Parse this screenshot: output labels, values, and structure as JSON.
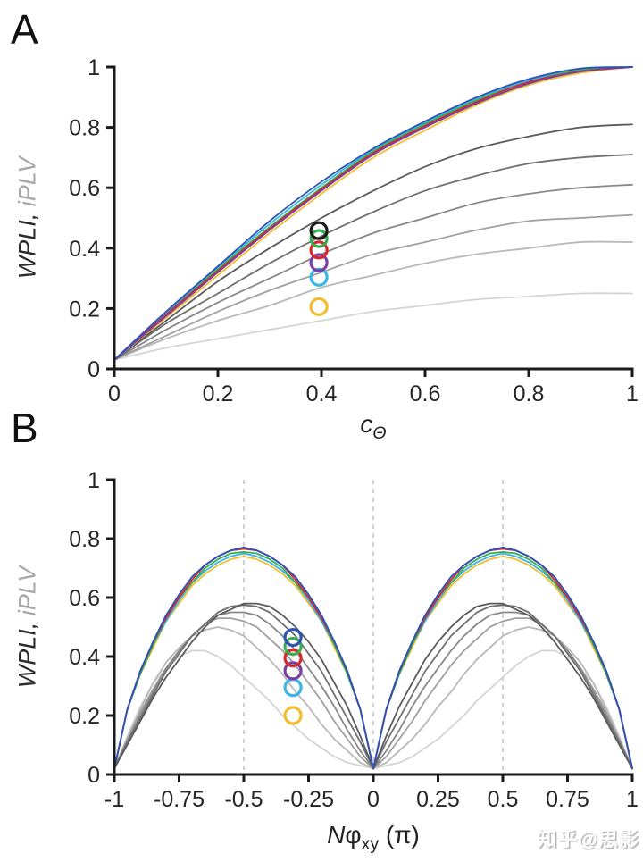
{
  "figure": {
    "background": "#ffffff",
    "watermark": "知乎@思影"
  },
  "panels": {
    "a": {
      "letter": "A",
      "ylabel_wpli": "WPLI",
      "ylabel_sep": ", ",
      "ylabel_iplv": "iPLV",
      "xlabel_main": "c",
      "xlabel_sub": "Θ"
    },
    "b": {
      "letter": "B",
      "ylabel_wpli": "WPLI",
      "ylabel_sep": ", ",
      "ylabel_iplv": "iPLV",
      "xlabel_n": "N",
      "xlabel_phi": "φ",
      "xlabel_sub": "xy",
      "xlabel_pi": " (π)"
    }
  },
  "chart_data": [
    {
      "panel": "A",
      "type": "line",
      "title": "",
      "xlabel": "c_Θ",
      "ylabel": "WPLI, iPLV",
      "xlim": [
        0,
        1
      ],
      "ylim": [
        0,
        1
      ],
      "grid": false,
      "legend": "none",
      "smooth": true,
      "gridlines_x": [],
      "x_ticks": [
        0,
        0.2,
        0.4,
        0.6,
        0.8,
        1
      ],
      "x_tick_labels": [
        "0",
        "0.2",
        "0.4",
        "0.6",
        "0.8",
        "1"
      ],
      "y_ticks": [
        0,
        0.2,
        0.4,
        0.6,
        0.8,
        1
      ],
      "y_tick_labels": [
        "0",
        "0.2",
        "0.4",
        "0.6",
        "0.8",
        "1"
      ],
      "x": [
        0,
        0.1,
        0.2,
        0.3,
        0.4,
        0.5,
        0.6,
        0.7,
        0.8,
        0.9,
        1
      ],
      "series": [
        {
          "name": "gray-sat-0.25",
          "color": "#d4d4d4",
          "values": [
            0.03,
            0.07,
            0.1,
            0.13,
            0.16,
            0.19,
            0.21,
            0.23,
            0.24,
            0.25,
            0.25
          ]
        },
        {
          "name": "gray-sat-0.42",
          "color": "#b8b8b8",
          "values": [
            0.03,
            0.1,
            0.16,
            0.21,
            0.27,
            0.31,
            0.35,
            0.38,
            0.4,
            0.42,
            0.42
          ]
        },
        {
          "name": "gray-sat-0.51",
          "color": "#a0a0a0",
          "values": [
            0.03,
            0.11,
            0.19,
            0.26,
            0.32,
            0.38,
            0.42,
            0.46,
            0.49,
            0.5,
            0.51
          ]
        },
        {
          "name": "gray-sat-0.61",
          "color": "#888888",
          "values": [
            0.03,
            0.13,
            0.22,
            0.3,
            0.38,
            0.45,
            0.5,
            0.55,
            0.58,
            0.6,
            0.61
          ]
        },
        {
          "name": "gray-sat-0.71",
          "color": "#707070",
          "values": [
            0.03,
            0.15,
            0.25,
            0.35,
            0.44,
            0.52,
            0.59,
            0.64,
            0.68,
            0.7,
            0.71
          ]
        },
        {
          "name": "gray-sat-0.81",
          "color": "#5b5b5b",
          "values": [
            0.03,
            0.16,
            0.29,
            0.4,
            0.5,
            0.59,
            0.67,
            0.73,
            0.77,
            0.8,
            0.81
          ]
        },
        {
          "name": "yellow",
          "color": "#f3bd30",
          "values": [
            0.03,
            0.17,
            0.31,
            0.45,
            0.58,
            0.7,
            0.79,
            0.875,
            0.94,
            0.98,
            1.0
          ]
        },
        {
          "name": "cyan",
          "color": "#3ab5e6",
          "values": [
            0.03,
            0.185,
            0.335,
            0.48,
            0.61,
            0.725,
            0.815,
            0.895,
            0.955,
            0.99,
            1.0
          ]
        },
        {
          "name": "green",
          "color": "#3aad52",
          "values": [
            0.03,
            0.18,
            0.33,
            0.47,
            0.6,
            0.72,
            0.81,
            0.89,
            0.95,
            0.99,
            1.0
          ]
        },
        {
          "name": "red",
          "color": "#d7282e",
          "values": [
            0.03,
            0.18,
            0.325,
            0.465,
            0.595,
            0.715,
            0.805,
            0.885,
            0.95,
            0.985,
            1.0
          ]
        },
        {
          "name": "purple",
          "color": "#7a3fa3",
          "values": [
            0.03,
            0.175,
            0.32,
            0.46,
            0.59,
            0.71,
            0.8,
            0.88,
            0.945,
            0.985,
            1.0
          ]
        },
        {
          "name": "blue",
          "color": "#2d53b4",
          "values": [
            0.03,
            0.19,
            0.34,
            0.49,
            0.62,
            0.73,
            0.82,
            0.9,
            0.96,
            0.995,
            1.0
          ]
        }
      ],
      "markers": [
        {
          "name": "yellow",
          "color": "#f3bd30",
          "x": 0.395,
          "y": 0.206
        },
        {
          "name": "cyan",
          "color": "#3ab5e6",
          "x": 0.395,
          "y": 0.304
        },
        {
          "name": "purple",
          "color": "#7a3fa3",
          "x": 0.395,
          "y": 0.352
        },
        {
          "name": "red",
          "color": "#d7282e",
          "x": 0.395,
          "y": 0.394
        },
        {
          "name": "green",
          "color": "#3aad52",
          "x": 0.395,
          "y": 0.432
        },
        {
          "name": "black",
          "color": "#1a1a1a",
          "x": 0.395,
          "y": 0.458
        }
      ]
    },
    {
      "panel": "B",
      "type": "line",
      "title": "",
      "xlabel": "Nφ_xy (π)",
      "ylabel": "WPLI, iPLV",
      "xlim": [
        -1,
        1
      ],
      "ylim": [
        0,
        1
      ],
      "grid": false,
      "legend": "none",
      "smooth": false,
      "gridlines_x": [
        -0.5,
        0,
        0.5
      ],
      "x_ticks": [
        -1,
        -0.75,
        -0.5,
        -0.25,
        0,
        0.25,
        0.5,
        0.75,
        1
      ],
      "x_tick_labels": [
        "-1",
        "-0.75",
        "-0.5",
        "-0.25",
        "0",
        "0.25",
        "0.5",
        "0.75",
        "1"
      ],
      "y_ticks": [
        0,
        0.2,
        0.4,
        0.6,
        0.8,
        1
      ],
      "y_tick_labels": [
        "0",
        "0.2",
        "0.4",
        "0.6",
        "0.8",
        "1"
      ],
      "x": [
        -1,
        -0.95,
        -0.9,
        -0.85,
        -0.8,
        -0.75,
        -0.7,
        -0.65,
        -0.6,
        -0.55,
        -0.5,
        -0.45,
        -0.4,
        -0.35,
        -0.3,
        -0.25,
        -0.2,
        -0.15,
        -0.1,
        -0.05,
        0,
        0.05,
        0.1,
        0.15,
        0.2,
        0.25,
        0.3,
        0.35,
        0.4,
        0.45,
        0.5,
        0.55,
        0.6,
        0.65,
        0.7,
        0.75,
        0.8,
        0.85,
        0.9,
        0.95,
        1
      ],
      "series": [
        {
          "name": "gray-peak-0.42",
          "color": "#d4d4d4",
          "values": [
            0.02,
            0.13,
            0.23,
            0.31,
            0.36,
            0.4,
            0.42,
            0.42,
            0.4,
            0.37,
            0.33,
            0.29,
            0.25,
            0.2,
            0.16,
            0.12,
            0.09,
            0.06,
            0.04,
            0.03,
            0.02,
            0.03,
            0.04,
            0.06,
            0.09,
            0.12,
            0.16,
            0.2,
            0.25,
            0.29,
            0.33,
            0.37,
            0.4,
            0.42,
            0.42,
            0.4,
            0.36,
            0.31,
            0.23,
            0.13,
            0.02
          ]
        },
        {
          "name": "gray-peak-0.50",
          "color": "#b8b8b8",
          "values": [
            0.02,
            0.12,
            0.22,
            0.31,
            0.38,
            0.43,
            0.47,
            0.49,
            0.5,
            0.49,
            0.47,
            0.43,
            0.39,
            0.34,
            0.28,
            0.23,
            0.17,
            0.12,
            0.08,
            0.04,
            0.02,
            0.04,
            0.08,
            0.12,
            0.17,
            0.23,
            0.28,
            0.34,
            0.39,
            0.43,
            0.47,
            0.49,
            0.5,
            0.49,
            0.47,
            0.43,
            0.38,
            0.31,
            0.22,
            0.12,
            0.02
          ]
        },
        {
          "name": "gray-peak-0.53",
          "color": "#a0a0a0",
          "values": [
            0.02,
            0.12,
            0.21,
            0.29,
            0.36,
            0.42,
            0.47,
            0.51,
            0.53,
            0.53,
            0.52,
            0.5,
            0.46,
            0.42,
            0.37,
            0.31,
            0.25,
            0.18,
            0.12,
            0.06,
            0.02,
            0.06,
            0.12,
            0.18,
            0.25,
            0.31,
            0.37,
            0.42,
            0.46,
            0.5,
            0.52,
            0.53,
            0.53,
            0.51,
            0.47,
            0.42,
            0.36,
            0.29,
            0.21,
            0.12,
            0.02
          ]
        },
        {
          "name": "gray-peak-0.55",
          "color": "#888888",
          "values": [
            0.02,
            0.11,
            0.2,
            0.28,
            0.36,
            0.42,
            0.47,
            0.51,
            0.54,
            0.55,
            0.55,
            0.54,
            0.51,
            0.47,
            0.42,
            0.36,
            0.3,
            0.23,
            0.15,
            0.08,
            0.02,
            0.08,
            0.15,
            0.23,
            0.3,
            0.36,
            0.42,
            0.47,
            0.51,
            0.54,
            0.55,
            0.55,
            0.54,
            0.51,
            0.47,
            0.42,
            0.36,
            0.28,
            0.2,
            0.11,
            0.02
          ]
        },
        {
          "name": "gray-peak-0.575",
          "color": "#707070",
          "values": [
            0.02,
            0.11,
            0.19,
            0.27,
            0.35,
            0.41,
            0.47,
            0.51,
            0.55,
            0.57,
            0.575,
            0.57,
            0.55,
            0.51,
            0.47,
            0.41,
            0.35,
            0.27,
            0.19,
            0.11,
            0.02,
            0.11,
            0.19,
            0.27,
            0.35,
            0.41,
            0.47,
            0.51,
            0.55,
            0.57,
            0.575,
            0.57,
            0.55,
            0.51,
            0.47,
            0.41,
            0.35,
            0.27,
            0.19,
            0.11,
            0.02
          ]
        },
        {
          "name": "gray-peak-0.58",
          "color": "#5b5b5b",
          "values": [
            0.02,
            0.1,
            0.18,
            0.26,
            0.33,
            0.39,
            0.45,
            0.5,
            0.54,
            0.56,
            0.58,
            0.58,
            0.57,
            0.54,
            0.5,
            0.45,
            0.39,
            0.31,
            0.23,
            0.13,
            0.02,
            0.13,
            0.23,
            0.31,
            0.39,
            0.45,
            0.5,
            0.54,
            0.57,
            0.58,
            0.58,
            0.56,
            0.54,
            0.5,
            0.45,
            0.39,
            0.33,
            0.26,
            0.18,
            0.1,
            0.02
          ]
        },
        {
          "name": "yellow",
          "color": "#f3bd30",
          "values": [
            0.02,
            0.22,
            0.34,
            0.43,
            0.52,
            0.58,
            0.64,
            0.68,
            0.71,
            0.73,
            0.74,
            0.73,
            0.71,
            0.68,
            0.64,
            0.58,
            0.52,
            0.43,
            0.34,
            0.22,
            0.02,
            0.22,
            0.34,
            0.43,
            0.52,
            0.58,
            0.64,
            0.68,
            0.71,
            0.73,
            0.74,
            0.73,
            0.71,
            0.68,
            0.64,
            0.58,
            0.52,
            0.43,
            0.34,
            0.22,
            0.02
          ]
        },
        {
          "name": "cyan",
          "color": "#3ab5e6",
          "values": [
            0.02,
            0.22,
            0.34,
            0.44,
            0.52,
            0.59,
            0.65,
            0.69,
            0.72,
            0.74,
            0.75,
            0.74,
            0.72,
            0.69,
            0.65,
            0.59,
            0.52,
            0.44,
            0.34,
            0.22,
            0.02,
            0.22,
            0.34,
            0.44,
            0.52,
            0.59,
            0.65,
            0.69,
            0.72,
            0.74,
            0.75,
            0.74,
            0.72,
            0.69,
            0.65,
            0.59,
            0.52,
            0.44,
            0.34,
            0.22,
            0.02
          ]
        },
        {
          "name": "green",
          "color": "#3aad52",
          "values": [
            0.02,
            0.22,
            0.34,
            0.44,
            0.53,
            0.6,
            0.65,
            0.7,
            0.73,
            0.75,
            0.755,
            0.75,
            0.73,
            0.7,
            0.65,
            0.6,
            0.53,
            0.44,
            0.34,
            0.22,
            0.02,
            0.22,
            0.34,
            0.44,
            0.53,
            0.6,
            0.65,
            0.7,
            0.73,
            0.75,
            0.755,
            0.75,
            0.73,
            0.7,
            0.65,
            0.6,
            0.53,
            0.44,
            0.34,
            0.22,
            0.02
          ]
        },
        {
          "name": "red",
          "color": "#d7282e",
          "values": [
            0.02,
            0.22,
            0.35,
            0.45,
            0.53,
            0.6,
            0.66,
            0.71,
            0.74,
            0.76,
            0.765,
            0.76,
            0.74,
            0.71,
            0.66,
            0.6,
            0.53,
            0.45,
            0.35,
            0.22,
            0.02,
            0.22,
            0.35,
            0.45,
            0.53,
            0.6,
            0.66,
            0.71,
            0.74,
            0.76,
            0.765,
            0.76,
            0.74,
            0.71,
            0.66,
            0.6,
            0.53,
            0.45,
            0.35,
            0.22,
            0.02
          ]
        },
        {
          "name": "purple",
          "color": "#7a3fa3",
          "values": [
            0.02,
            0.22,
            0.35,
            0.45,
            0.54,
            0.61,
            0.67,
            0.71,
            0.74,
            0.76,
            0.77,
            0.76,
            0.74,
            0.71,
            0.67,
            0.61,
            0.54,
            0.45,
            0.35,
            0.22,
            0.02,
            0.22,
            0.35,
            0.45,
            0.54,
            0.61,
            0.67,
            0.71,
            0.74,
            0.76,
            0.77,
            0.76,
            0.74,
            0.71,
            0.67,
            0.61,
            0.54,
            0.45,
            0.35,
            0.22,
            0.02
          ]
        },
        {
          "name": "blue",
          "color": "#2d53b4",
          "values": [
            0.02,
            0.22,
            0.35,
            0.45,
            0.54,
            0.61,
            0.67,
            0.71,
            0.74,
            0.76,
            0.77,
            0.76,
            0.74,
            0.71,
            0.67,
            0.61,
            0.54,
            0.45,
            0.35,
            0.22,
            0.02,
            0.22,
            0.35,
            0.45,
            0.54,
            0.61,
            0.67,
            0.71,
            0.74,
            0.76,
            0.77,
            0.76,
            0.74,
            0.71,
            0.67,
            0.61,
            0.54,
            0.45,
            0.35,
            0.22,
            0.02
          ]
        }
      ],
      "markers": [
        {
          "name": "yellow",
          "color": "#f3bd30",
          "x": -0.31,
          "y": 0.2
        },
        {
          "name": "cyan",
          "color": "#3ab5e6",
          "x": -0.31,
          "y": 0.295
        },
        {
          "name": "purple",
          "color": "#7a3fa3",
          "x": -0.31,
          "y": 0.352
        },
        {
          "name": "red",
          "color": "#d7282e",
          "x": -0.31,
          "y": 0.395
        },
        {
          "name": "green",
          "color": "#3aad52",
          "x": -0.31,
          "y": 0.435
        },
        {
          "name": "blue",
          "color": "#2d53b4",
          "x": -0.31,
          "y": 0.465
        }
      ]
    }
  ]
}
